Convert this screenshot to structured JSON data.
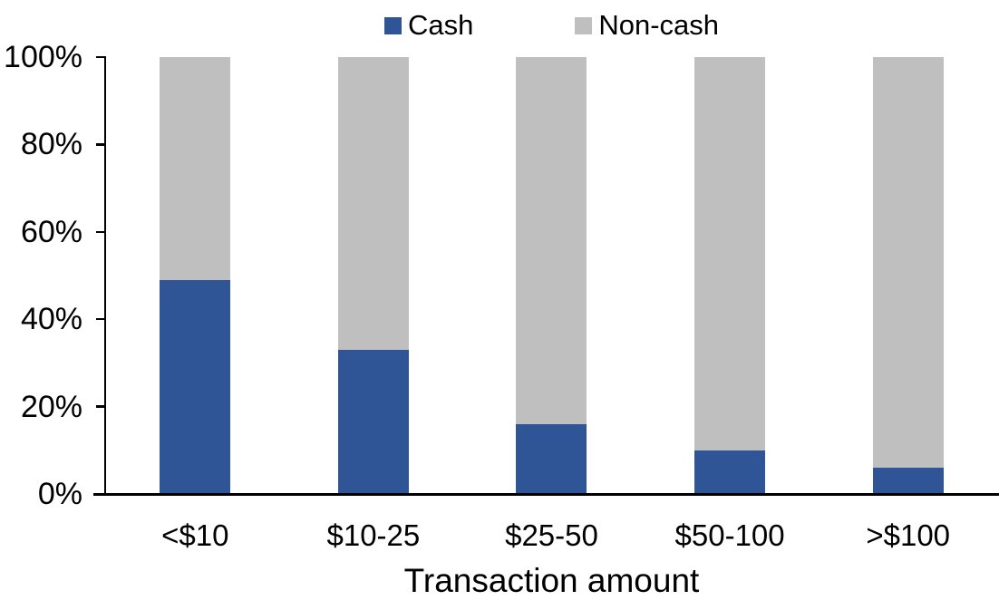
{
  "chart_data": {
    "type": "bar",
    "stacked": true,
    "orientation": "vertical",
    "title": "",
    "xlabel": "Transaction amount",
    "ylabel": "",
    "categories": [
      "<$10",
      "$10-25",
      "$25-50",
      "$50-100",
      ">$100"
    ],
    "series": [
      {
        "name": "Cash",
        "color": "#2F5597",
        "values": [
          49,
          33,
          16,
          10,
          6
        ]
      },
      {
        "name": "Non-cash",
        "color": "#BFBFBF",
        "values": [
          51,
          67,
          84,
          90,
          94
        ]
      }
    ],
    "ylim": [
      0,
      100
    ],
    "y_ticks": [
      "0%",
      "20%",
      "40%",
      "60%",
      "80%",
      "100%"
    ],
    "y_tick_values": [
      0,
      20,
      40,
      60,
      80,
      100
    ],
    "grid": false,
    "legend_position": "top",
    "axis_color": "#000000",
    "text_color": "#000000",
    "background_color": "#FFFFFF"
  }
}
